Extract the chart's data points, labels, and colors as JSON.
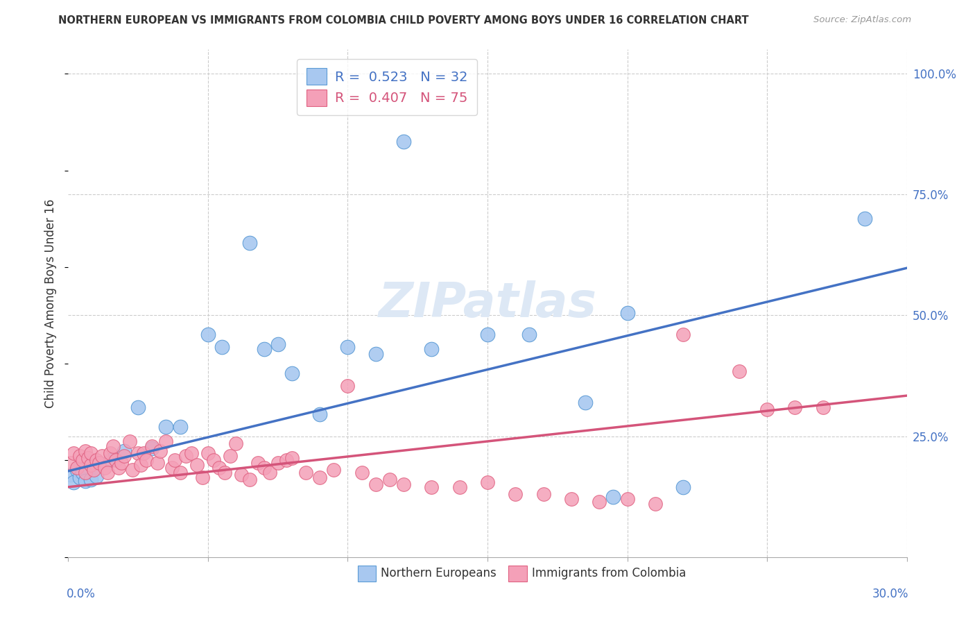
{
  "title": "NORTHERN EUROPEAN VS IMMIGRANTS FROM COLOMBIA CHILD POVERTY AMONG BOYS UNDER 16 CORRELATION CHART",
  "source": "Source: ZipAtlas.com",
  "ylabel": "Child Poverty Among Boys Under 16",
  "blue_R": 0.523,
  "blue_N": 32,
  "pink_R": 0.407,
  "pink_N": 75,
  "blue_color": "#A8C8F0",
  "pink_color": "#F4A0B8",
  "blue_edge_color": "#5B9BD5",
  "pink_edge_color": "#E06080",
  "blue_line_color": "#4472C4",
  "pink_line_color": "#D4547A",
  "legend_blue_label": "Northern Europeans",
  "legend_pink_label": "Immigrants from Colombia",
  "blue_line_intercept": 0.178,
  "blue_line_slope": 1.4,
  "pink_line_intercept": 0.145,
  "pink_line_slope": 0.63,
  "blue_x": [
    0.001,
    0.002,
    0.003,
    0.004,
    0.005,
    0.006,
    0.008,
    0.01,
    0.015,
    0.02,
    0.025,
    0.03,
    0.035,
    0.04,
    0.05,
    0.055,
    0.065,
    0.07,
    0.075,
    0.08,
    0.09,
    0.1,
    0.11,
    0.12,
    0.13,
    0.15,
    0.165,
    0.185,
    0.195,
    0.2,
    0.22,
    0.285
  ],
  "blue_y": [
    0.17,
    0.155,
    0.18,
    0.165,
    0.175,
    0.158,
    0.16,
    0.168,
    0.2,
    0.22,
    0.31,
    0.225,
    0.27,
    0.27,
    0.46,
    0.435,
    0.65,
    0.43,
    0.44,
    0.38,
    0.295,
    0.435,
    0.42,
    0.86,
    0.43,
    0.46,
    0.46,
    0.32,
    0.125,
    0.505,
    0.145,
    0.7
  ],
  "pink_x": [
    0.001,
    0.002,
    0.003,
    0.004,
    0.005,
    0.006,
    0.006,
    0.007,
    0.008,
    0.008,
    0.009,
    0.01,
    0.011,
    0.012,
    0.013,
    0.014,
    0.015,
    0.016,
    0.017,
    0.018,
    0.019,
    0.02,
    0.022,
    0.023,
    0.025,
    0.026,
    0.027,
    0.028,
    0.03,
    0.032,
    0.033,
    0.035,
    0.037,
    0.038,
    0.04,
    0.042,
    0.044,
    0.046,
    0.048,
    0.05,
    0.052,
    0.054,
    0.056,
    0.058,
    0.06,
    0.062,
    0.065,
    0.068,
    0.07,
    0.072,
    0.075,
    0.078,
    0.08,
    0.085,
    0.09,
    0.095,
    0.1,
    0.105,
    0.11,
    0.115,
    0.12,
    0.13,
    0.14,
    0.15,
    0.16,
    0.17,
    0.18,
    0.19,
    0.2,
    0.21,
    0.22,
    0.24,
    0.25,
    0.26,
    0.27
  ],
  "pink_y": [
    0.195,
    0.215,
    0.185,
    0.21,
    0.2,
    0.175,
    0.22,
    0.205,
    0.19,
    0.215,
    0.18,
    0.2,
    0.195,
    0.21,
    0.185,
    0.175,
    0.215,
    0.23,
    0.2,
    0.185,
    0.195,
    0.21,
    0.24,
    0.18,
    0.215,
    0.19,
    0.215,
    0.2,
    0.23,
    0.195,
    0.22,
    0.24,
    0.185,
    0.2,
    0.175,
    0.21,
    0.215,
    0.19,
    0.165,
    0.215,
    0.2,
    0.185,
    0.175,
    0.21,
    0.235,
    0.17,
    0.16,
    0.195,
    0.185,
    0.175,
    0.195,
    0.2,
    0.205,
    0.175,
    0.165,
    0.18,
    0.355,
    0.175,
    0.15,
    0.16,
    0.15,
    0.145,
    0.145,
    0.155,
    0.13,
    0.13,
    0.12,
    0.115,
    0.12,
    0.11,
    0.46,
    0.385,
    0.305,
    0.31,
    0.31
  ]
}
